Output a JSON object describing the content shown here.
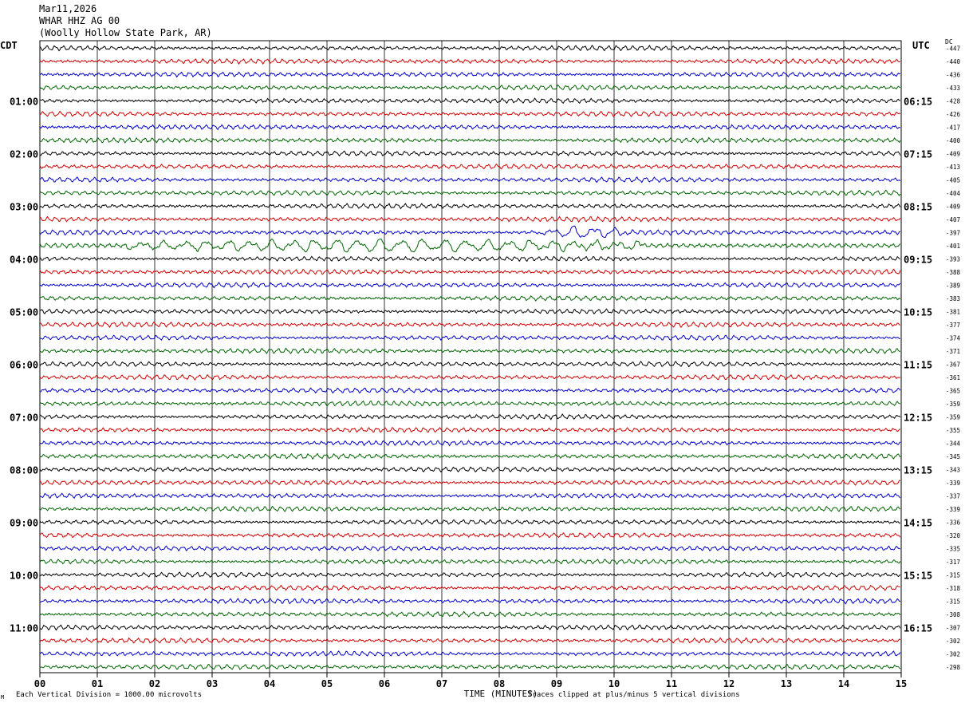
{
  "header": {
    "date": "Mar11,2026",
    "station": "WHAR HHZ AG 00",
    "location": "(Woolly Hollow State Park, AR)"
  },
  "left_tz": "CDT",
  "right_tz": "UTC",
  "dc_label": "DC",
  "footer": {
    "scale": "Each Vertical Division = 1000.00 microvolts",
    "clip": "Traces clipped at plus/minus 5 vertical divisions",
    "mark": "M"
  },
  "colors": {
    "trace_cycle": [
      "#000000",
      "#d00000",
      "#0000c8",
      "#006400"
    ],
    "grid": "#000000"
  },
  "chart_data": {
    "type": "line",
    "subtype": "helicorder",
    "xlabel": "TIME (MINUTES)",
    "x_ticks": [
      "00",
      "01",
      "02",
      "03",
      "04",
      "05",
      "06",
      "07",
      "08",
      "09",
      "10",
      "11",
      "12",
      "13",
      "14",
      "15"
    ],
    "xlim": [
      0,
      15
    ],
    "rows_per_hour": 4,
    "left_hour_labels": [
      "01:00",
      "02:00",
      "03:00",
      "04:00",
      "05:00",
      "06:00",
      "07:00",
      "08:00",
      "09:00",
      "10:00",
      "11:00"
    ],
    "right_hour_labels": [
      "06:15",
      "07:15",
      "08:15",
      "09:15",
      "10:15",
      "11:15",
      "12:15",
      "13:15",
      "14:15",
      "15:15",
      "16:15"
    ],
    "dc_offsets": [
      "-447",
      "-440",
      "-436",
      "-433",
      "-428",
      "-426",
      "-417",
      "-400",
      "-409",
      "-413",
      "-405",
      "-404",
      "-409",
      "-407",
      "-397",
      "-401",
      "-393",
      "-388",
      "-389",
      "-383",
      "-381",
      "-377",
      "-374",
      "-371",
      "-367",
      "-361",
      "-365",
      "-359",
      "-359",
      "-355",
      "-344",
      "-345",
      "-343",
      "-339",
      "-337",
      "-339",
      "-336",
      "-320",
      "-335",
      "-317",
      "-315",
      "-318",
      "-315",
      "-308",
      "-307",
      "-302",
      "-302",
      "-298"
    ],
    "events": [
      {
        "row": 14,
        "start_min": 8.5,
        "end_min": 10.5,
        "note": "larger oscillation"
      },
      {
        "row": 15,
        "start_min": 1.5,
        "end_min": 10.5,
        "note": "large-amplitude wave train"
      }
    ]
  }
}
